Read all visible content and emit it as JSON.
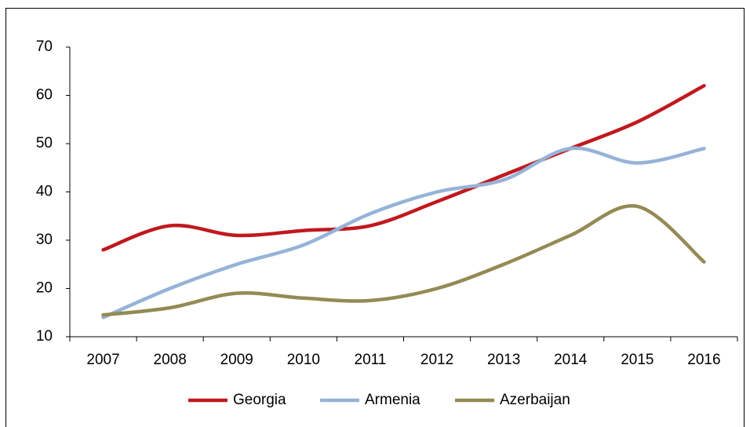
{
  "chart_data": {
    "type": "line",
    "categories": [
      "2007",
      "2008",
      "2009",
      "2010",
      "2011",
      "2012",
      "2013",
      "2014",
      "2015",
      "2016"
    ],
    "series": [
      {
        "name": "Georgia",
        "color": "#c0191e",
        "values": [
          28,
          33,
          31,
          32,
          33,
          38,
          43.5,
          49,
          54.5,
          62
        ]
      },
      {
        "name": "Armenia",
        "color": "#95b3d7",
        "values": [
          14,
          20,
          25,
          29,
          35.5,
          40,
          42.5,
          49,
          46,
          49
        ]
      },
      {
        "name": "Azerbaijan",
        "color": "#948a54",
        "values": [
          14.5,
          16,
          19,
          18,
          17.5,
          20,
          25,
          31,
          37,
          25.5
        ]
      }
    ],
    "ylim": [
      10,
      70
    ],
    "yticks": [
      10,
      20,
      30,
      40,
      50,
      60,
      70
    ],
    "grid": false,
    "legend": "bottom",
    "smooth": true
  }
}
